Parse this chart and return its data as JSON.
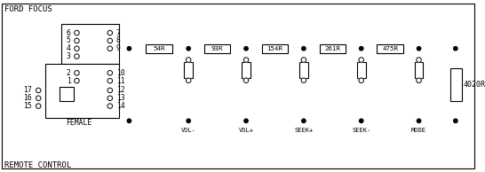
{
  "title_top": "FORD FOCUS",
  "title_bottom": "REMOTE CONTROL",
  "bg_color": "#ffffff",
  "line_color": "#000000",
  "resistor_labels": [
    "54R",
    "93R",
    "154R",
    "261R",
    "475R"
  ],
  "switch_labels": [
    "VOL-",
    "VOL+",
    "SEEK+",
    "SEEK-",
    "MODE"
  ],
  "final_resistor_label": "4020R",
  "pin_labels_left": [
    "6",
    "5",
    "4",
    "3",
    "2",
    "1"
  ],
  "pin_labels_right_top": [
    "7",
    "8",
    "9"
  ],
  "pin_labels_right_bot": [
    "10",
    "11",
    "12",
    "13",
    "14"
  ],
  "pin_labels_far_left": [
    "17",
    "16",
    "15"
  ],
  "font_size": 6.5,
  "connector_font_size": 5.8,
  "female_label": "FEMALE"
}
